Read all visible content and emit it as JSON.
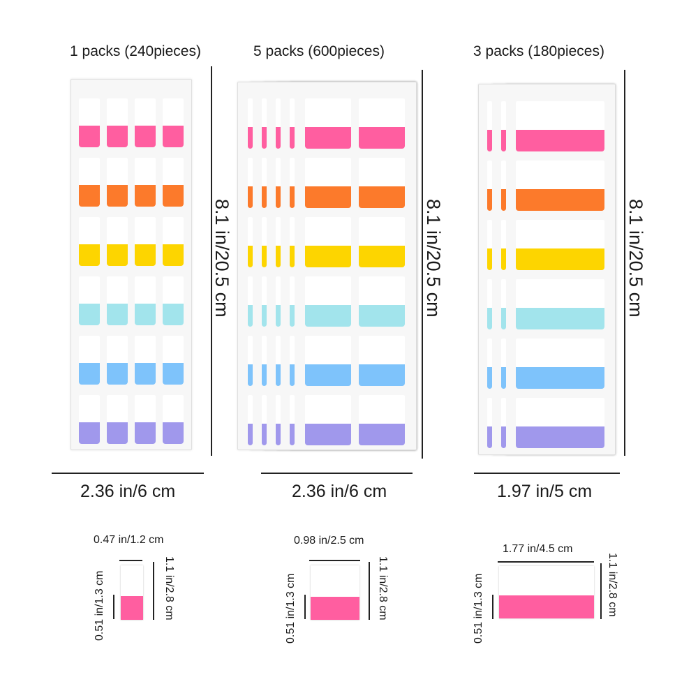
{
  "products": [
    {
      "title": "1 packs (240pieces)",
      "height_label": "8.1 in/20.5 cm",
      "width_label": "2.36 in/6 cm",
      "tab_width_label": "0.47 in/1.2 cm",
      "tab_height_label": "1.1 in/2.8 cm",
      "color_height_label": "0.51 in/1.3 cm"
    },
    {
      "title": "5 packs (600pieces)",
      "height_label": "8.1 in/20.5 cm",
      "width_label": "2.36 in/6 cm",
      "tab_width_label": "0.98 in/2.5 cm",
      "tab_height_label": "1.1 in/2.8 cm",
      "color_height_label": "0.51 in/1.3 cm"
    },
    {
      "title": "3 packs (180pieces)",
      "height_label": "8.1 in/20.5 cm",
      "width_label": "1.97 in/5 cm",
      "tab_width_label": "1.77 in/4.5 cm",
      "tab_height_label": "1.1 in/2.8 cm",
      "color_height_label": "0.51 in/1.3 cm"
    }
  ],
  "colors": [
    "#ff5ea0",
    "#fc7a2b",
    "#fdd500",
    "#a2e4ec",
    "#7ec3fb",
    "#a098ec"
  ]
}
